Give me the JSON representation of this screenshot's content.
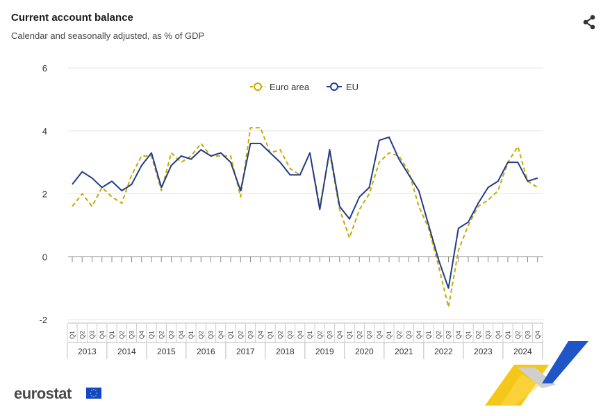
{
  "header": {
    "title": "Current account balance",
    "subtitle": "Calendar and seasonally adjusted, as % of GDP"
  },
  "share_icon": "share-icon",
  "branding": {
    "logo_text": "eurostat",
    "flag_icon": "eu-flag-icon",
    "decoration": "eurostat-stripes"
  },
  "colors": {
    "euro_area": "#c9a800",
    "eu": "#1f3c88",
    "grid": "#e5e5e5",
    "axis": "#888888"
  },
  "chart_data": {
    "type": "line",
    "title": "Current account balance",
    "subtitle": "Calendar and seasonally adjusted, as % of GDP",
    "xlabel": "",
    "ylabel": "",
    "ylim": [
      -2,
      6
    ],
    "yticks": [
      -2,
      0,
      2,
      4,
      6
    ],
    "quarters": [
      "Q1",
      "Q2",
      "Q3",
      "Q4"
    ],
    "years": [
      "2013",
      "2014",
      "2015",
      "2016",
      "2017",
      "2018",
      "2019",
      "2020",
      "2021",
      "2022",
      "2023",
      "2024"
    ],
    "grid": true,
    "legend_position": "top-center",
    "series": [
      {
        "name": "Euro area",
        "style": "dashed",
        "values": [
          1.6,
          2.0,
          1.6,
          2.2,
          1.9,
          1.7,
          2.6,
          3.2,
          3.2,
          2.1,
          3.3,
          3.0,
          3.2,
          3.6,
          3.2,
          3.2,
          3.2,
          1.9,
          4.1,
          4.1,
          3.3,
          3.4,
          2.8,
          2.6,
          3.3,
          1.6,
          3.3,
          1.5,
          0.6,
          1.5,
          2.0,
          3.0,
          3.3,
          3.2,
          2.7,
          1.6,
          0.9,
          -0.3,
          -1.6,
          0.2,
          1.0,
          1.6,
          1.8,
          2.1,
          3.0,
          3.5,
          2.4,
          2.2
        ]
      },
      {
        "name": "EU",
        "style": "solid",
        "values": [
          2.3,
          2.7,
          2.5,
          2.2,
          2.4,
          2.1,
          2.3,
          2.9,
          3.3,
          2.2,
          2.9,
          3.2,
          3.1,
          3.4,
          3.2,
          3.3,
          3.0,
          2.1,
          3.6,
          3.6,
          3.3,
          3.0,
          2.6,
          2.6,
          3.3,
          1.5,
          3.4,
          1.6,
          1.2,
          1.9,
          2.2,
          3.7,
          3.8,
          3.1,
          2.6,
          2.1,
          1.0,
          -0.1,
          -1.0,
          0.9,
          1.1,
          1.7,
          2.2,
          2.4,
          3.0,
          3.0,
          2.4,
          2.5
        ]
      }
    ]
  }
}
